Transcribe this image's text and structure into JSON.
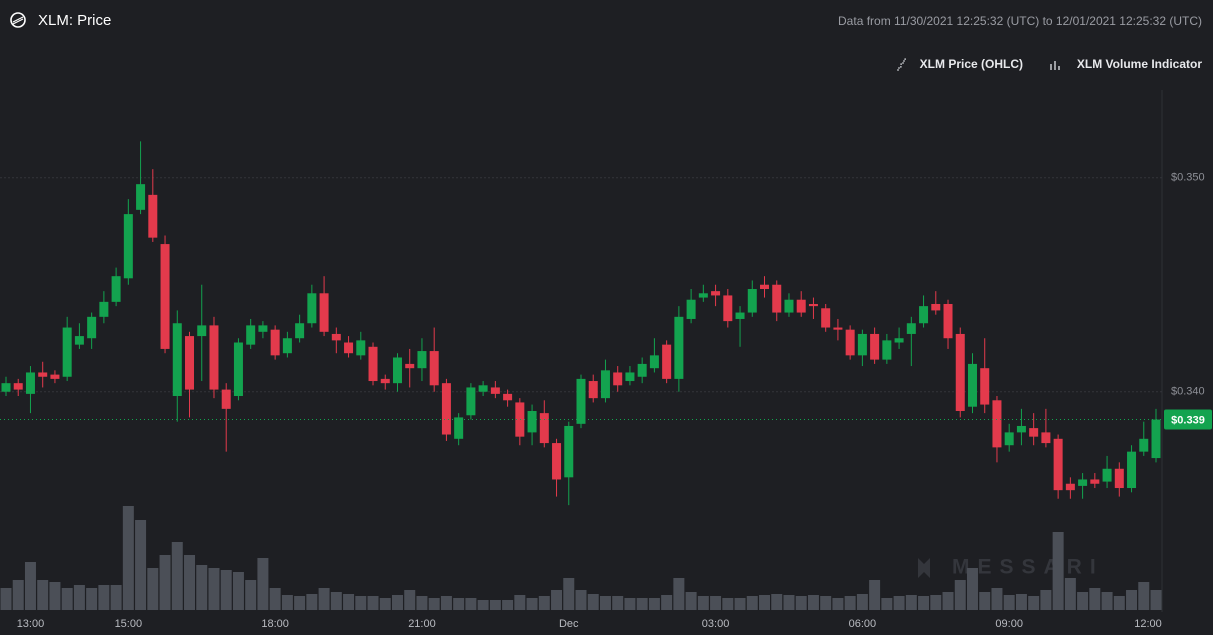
{
  "title": "XLM: Price",
  "date_range": "Data from 11/30/2021 12:25:32 (UTC) to 12/01/2021 12:25:32 (UTC)",
  "watermark": "MESSARI",
  "chart_data": {
    "type": "candlestick",
    "categories": [
      null,
      null,
      "13:00",
      null,
      null,
      null,
      null,
      null,
      null,
      null,
      "15:00",
      null,
      null,
      null,
      null,
      null,
      null,
      null,
      null,
      null,
      null,
      null,
      "18:00",
      null,
      null,
      null,
      null,
      null,
      null,
      null,
      null,
      null,
      null,
      null,
      "21:00",
      null,
      null,
      null,
      null,
      null,
      null,
      null,
      null,
      null,
      null,
      null,
      "Dec",
      null,
      null,
      null,
      null,
      null,
      null,
      null,
      null,
      null,
      null,
      null,
      "03:00",
      null,
      null,
      null,
      null,
      null,
      null,
      null,
      null,
      null,
      null,
      null,
      "06:00",
      null,
      null,
      null,
      null,
      null,
      null,
      null,
      null,
      null,
      null,
      null,
      "09:00",
      null,
      null,
      null,
      null,
      null,
      null,
      null,
      null,
      null,
      null,
      null,
      "12:00"
    ],
    "series": [
      {
        "name": "XLM Price (OHLC)",
        "up_color": "#13a34f",
        "down_color": "#e33a4c",
        "open": [
          0.34,
          0.3404,
          0.3399,
          0.3409,
          0.3408,
          0.3407,
          0.3422,
          0.3425,
          0.3435,
          0.3442,
          0.3453,
          0.3485,
          0.3492,
          0.3469,
          0.3398,
          0.3426,
          0.3426,
          0.3431,
          0.3401,
          0.3398,
          0.3422,
          0.3428,
          0.3429,
          0.3418,
          0.3425,
          0.3432,
          0.3446,
          0.3427,
          0.3423,
          0.3417,
          0.3421,
          0.3406,
          0.3404,
          0.3413,
          0.3411,
          0.3419,
          0.3404,
          0.3378,
          0.3389,
          0.34,
          0.3402,
          0.3399,
          0.3395,
          0.3381,
          0.339,
          0.3376,
          0.336,
          0.3385,
          0.3405,
          0.3397,
          0.3409,
          0.3405,
          0.3407,
          0.3411,
          0.3422,
          0.3406,
          0.3434,
          0.3444,
          0.3447,
          0.3445,
          0.3434,
          0.3437,
          0.345,
          0.345,
          0.3437,
          0.3443,
          0.3441,
          0.3439,
          0.343,
          0.3429,
          0.3417,
          0.3427,
          0.3415,
          0.3423,
          0.3427,
          0.3432,
          0.3441,
          0.3441,
          0.3427,
          0.3393,
          0.3411,
          0.3396,
          0.3375,
          0.3381,
          0.3383,
          0.3381,
          0.3378,
          0.3357,
          0.3356,
          0.3359,
          0.3358,
          0.3364,
          0.3355,
          0.3372,
          0.3369
        ],
        "high": [
          0.3407,
          0.3406,
          0.3412,
          0.3414,
          0.341,
          0.3435,
          0.3432,
          0.3437,
          0.3447,
          0.3458,
          0.349,
          0.3517,
          0.3504,
          0.3473,
          0.3438,
          0.3428,
          0.345,
          0.3435,
          0.3404,
          0.3425,
          0.3434,
          0.3433,
          0.3431,
          0.3428,
          0.3436,
          0.345,
          0.3454,
          0.343,
          0.3426,
          0.3428,
          0.3423,
          0.3408,
          0.3418,
          0.342,
          0.3425,
          0.343,
          0.3406,
          0.339,
          0.3404,
          0.3405,
          0.3405,
          0.3401,
          0.3397,
          0.3394,
          0.3396,
          0.3378,
          0.3386,
          0.3408,
          0.3408,
          0.3415,
          0.3412,
          0.3412,
          0.3416,
          0.3425,
          0.3424,
          0.344,
          0.3448,
          0.345,
          0.345,
          0.3448,
          0.344,
          0.3452,
          0.3454,
          0.3452,
          0.3446,
          0.3447,
          0.3444,
          0.3441,
          0.3434,
          0.3431,
          0.3429,
          0.343,
          0.3427,
          0.343,
          0.3435,
          0.3445,
          0.3447,
          0.3443,
          0.343,
          0.3418,
          0.3425,
          0.3398,
          0.3385,
          0.3392,
          0.339,
          0.3392,
          0.338,
          0.336,
          0.3362,
          0.3362,
          0.337,
          0.3367,
          0.3375,
          0.3386,
          0.3392
        ],
        "low": [
          0.3398,
          0.3398,
          0.339,
          0.3402,
          0.3404,
          0.3405,
          0.342,
          0.342,
          0.3432,
          0.344,
          0.345,
          0.3483,
          0.347,
          0.3418,
          0.3386,
          0.3388,
          0.3405,
          0.3397,
          0.3372,
          0.3396,
          0.342,
          0.3425,
          0.3415,
          0.3416,
          0.3423,
          0.343,
          0.3426,
          0.3418,
          0.3416,
          0.3415,
          0.3403,
          0.3401,
          0.34,
          0.3402,
          0.3405,
          0.34,
          0.3377,
          0.3375,
          0.3387,
          0.3398,
          0.3397,
          0.3393,
          0.3375,
          0.3375,
          0.3374,
          0.3351,
          0.3347,
          0.3383,
          0.3395,
          0.3395,
          0.34,
          0.3403,
          0.3404,
          0.3409,
          0.3404,
          0.34,
          0.3432,
          0.3442,
          0.344,
          0.343,
          0.3421,
          0.3435,
          0.3444,
          0.3433,
          0.3435,
          0.3435,
          0.3434,
          0.3428,
          0.3424,
          0.3415,
          0.3412,
          0.3413,
          0.3413,
          0.342,
          0.3412,
          0.343,
          0.3436,
          0.342,
          0.3388,
          0.339,
          0.339,
          0.3367,
          0.3372,
          0.3375,
          0.3375,
          0.3374,
          0.335,
          0.335,
          0.335,
          0.3355,
          0.3355,
          0.3351,
          0.3353,
          0.337,
          0.3367
        ],
        "close": [
          0.3404,
          0.3401,
          0.3409,
          0.3407,
          0.3406,
          0.343,
          0.3426,
          0.3435,
          0.3442,
          0.3454,
          0.3483,
          0.3497,
          0.3472,
          0.342,
          0.3432,
          0.3401,
          0.3431,
          0.3401,
          0.3392,
          0.3423,
          0.3431,
          0.3431,
          0.3417,
          0.3425,
          0.3432,
          0.3446,
          0.3428,
          0.3424,
          0.3418,
          0.3424,
          0.3405,
          0.3404,
          0.3416,
          0.3411,
          0.3419,
          0.3403,
          0.338,
          0.3388,
          0.3402,
          0.3403,
          0.3399,
          0.3396,
          0.3379,
          0.3391,
          0.3376,
          0.3359,
          0.3384,
          0.3406,
          0.3397,
          0.341,
          0.3403,
          0.3409,
          0.3413,
          0.3417,
          0.3406,
          0.3435,
          0.3443,
          0.3446,
          0.3445,
          0.3433,
          0.3437,
          0.3448,
          0.3448,
          0.3437,
          0.3443,
          0.3437,
          0.344,
          0.343,
          0.3429,
          0.3417,
          0.3427,
          0.3415,
          0.3424,
          0.3425,
          0.3432,
          0.344,
          0.3438,
          0.3425,
          0.3391,
          0.3413,
          0.3394,
          0.3374,
          0.3381,
          0.3384,
          0.3379,
          0.3376,
          0.3354,
          0.3354,
          0.3359,
          0.3357,
          0.3364,
          0.3355,
          0.3372,
          0.3378,
          0.3387
        ]
      },
      {
        "name": "XLM Volume Indicator",
        "type": "bar",
        "color": "#4b4f57",
        "values": [
          22,
          30,
          48,
          30,
          28,
          22,
          25,
          22,
          25,
          25,
          104,
          90,
          42,
          55,
          68,
          55,
          45,
          42,
          40,
          38,
          30,
          52,
          22,
          15,
          14,
          16,
          22,
          18,
          16,
          14,
          14,
          12,
          15,
          20,
          14,
          12,
          14,
          12,
          12,
          10,
          10,
          10,
          15,
          12,
          14,
          20,
          32,
          20,
          16,
          14,
          14,
          12,
          12,
          12,
          15,
          32,
          18,
          14,
          14,
          12,
          12,
          14,
          15,
          16,
          15,
          14,
          15,
          14,
          12,
          14,
          16,
          30,
          12,
          14,
          15,
          14,
          15,
          18,
          30,
          42,
          18,
          22,
          15,
          16,
          14,
          20,
          78,
          32,
          18,
          22,
          18,
          14,
          20,
          28,
          20
        ]
      }
    ],
    "ylim": [
      0.3298,
      0.3541
    ],
    "yticks": [
      {
        "value": 0.34,
        "label": "$0.340"
      },
      {
        "value": 0.35,
        "label": "$0.350"
      }
    ],
    "grid": true,
    "last_price_label": "$0.339"
  }
}
